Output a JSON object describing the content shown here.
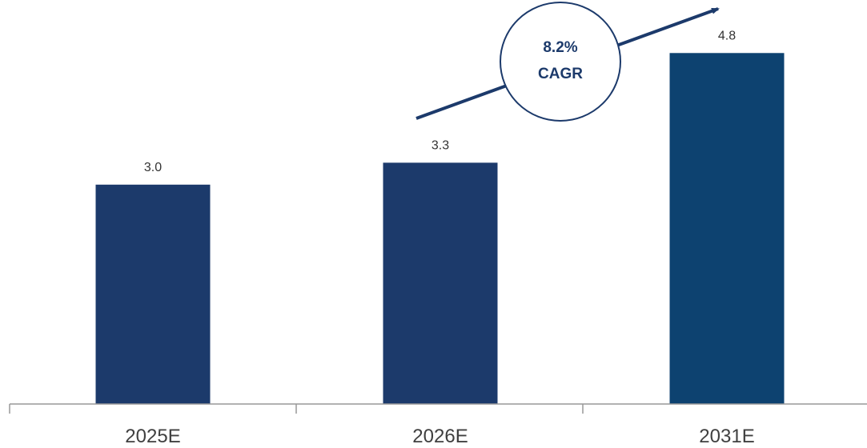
{
  "chart_data": {
    "type": "bar",
    "categories": [
      "2025E",
      "2026E",
      "2031E"
    ],
    "values": [
      3.0,
      3.3,
      4.8
    ],
    "value_labels": [
      "3.0",
      "3.3",
      "4.8"
    ],
    "bar_colors": [
      "#1c3a6b",
      "#1c3a6b",
      "#0d4270"
    ],
    "title": "",
    "xlabel": "",
    "ylabel": "",
    "ylim": [
      0,
      5.5
    ],
    "grid": false,
    "annotation": {
      "line1": "8.2%",
      "line2": "CAGR",
      "circle_border_color": "#1c3a6b",
      "arrow_color": "#1c3a6b"
    },
    "axis_color": "#999999"
  }
}
